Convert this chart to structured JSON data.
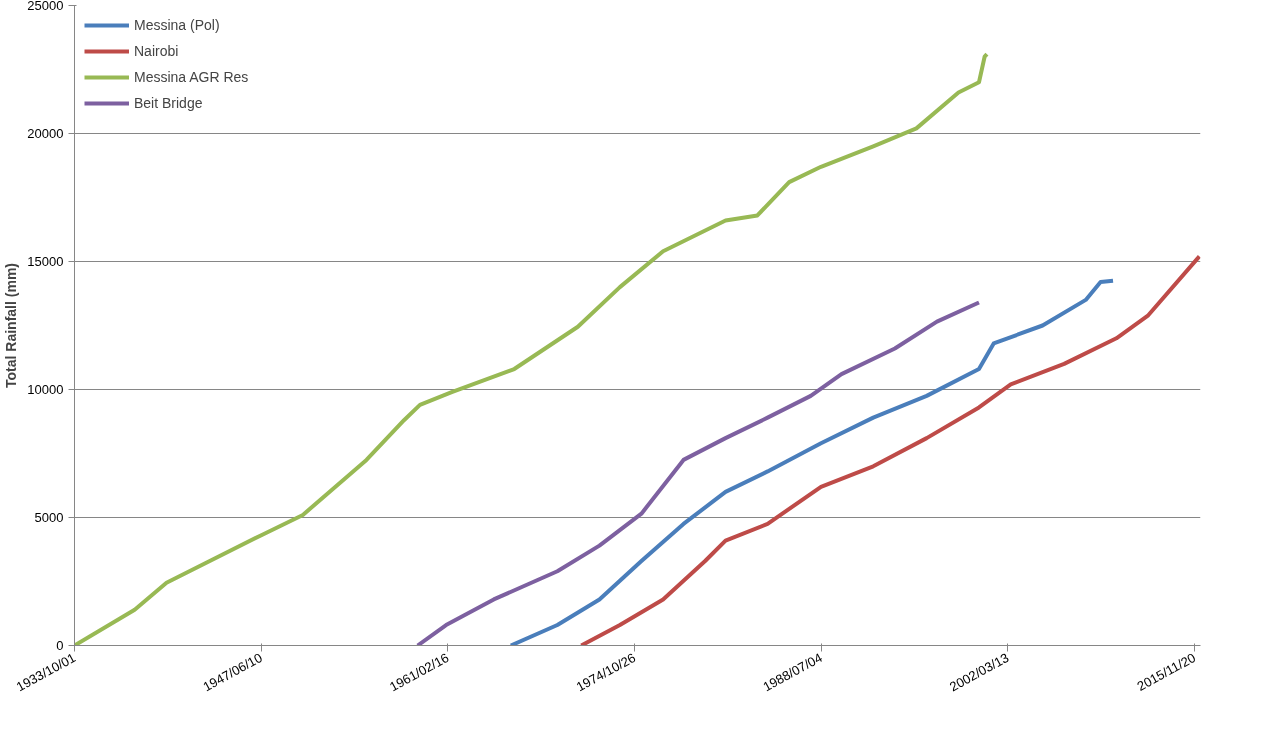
{
  "chart_data": {
    "type": "line",
    "ylabel": "Total Rainfall (mm)",
    "xlim": [
      "1933-10-01",
      "2016-05-01"
    ],
    "ylim": [
      0,
      25000
    ],
    "xticks": [
      {
        "value": "1933-10-01",
        "label": "1933/10/01"
      },
      {
        "value": "1947-06-10",
        "label": "1947/06/10"
      },
      {
        "value": "1961-02-16",
        "label": "1961/02/16"
      },
      {
        "value": "1974-10-26",
        "label": "1974/10/26"
      },
      {
        "value": "1988-07-04",
        "label": "1988/07/04"
      },
      {
        "value": "2002-03-13",
        "label": "2002/03/13"
      },
      {
        "value": "2015-11-20",
        "label": "2015/11/20"
      }
    ],
    "yticks": [
      0,
      5000,
      10000,
      15000,
      20000,
      25000
    ],
    "grid": "y",
    "legend": "top left",
    "line_style": "solid",
    "marker": "none",
    "series": [
      {
        "name": "Messina (Pol)",
        "color": "#4a7ebb",
        "x": [
          "1965-10",
          "1969-03",
          "1972-04",
          "1975-05",
          "1978-06",
          "1981-07",
          "1984-08",
          "1988-07",
          "1992-05",
          "1996-04",
          "2000-02",
          "2001-03",
          "2004-10",
          "2007-12",
          "2009-01",
          "2009-12"
        ],
        "values": [
          0,
          800,
          1800,
          3300,
          4750,
          6000,
          6800,
          7900,
          8900,
          9750,
          10800,
          11800,
          12500,
          13500,
          14200,
          14250
        ]
      },
      {
        "name": "Nairobi",
        "color": "#be4b48",
        "x": [
          "1970-12",
          "1973-10",
          "1976-12",
          "1980-01",
          "1981-07",
          "1984-08",
          "1988-07",
          "1992-05",
          "1996-04",
          "2000-02",
          "2002-06",
          "2006-05",
          "2010-03",
          "2012-07",
          "2016-04"
        ],
        "values": [
          0,
          800,
          1800,
          3300,
          4100,
          4750,
          6200,
          7000,
          8100,
          9300,
          10200,
          11000,
          12000,
          12900,
          15200
        ]
      },
      {
        "name": "Messina AGR Res",
        "color": "#98b954",
        "x": [
          "1933-10",
          "1938-03",
          "1940-07",
          "1947-06",
          "1950-07",
          "1955-03",
          "1957-12",
          "1959-02",
          "1961-06",
          "1966-01",
          "1970-09",
          "1973-10",
          "1976-12",
          "1981-07",
          "1983-11",
          "1986-03",
          "1988-07",
          "1992-05",
          "1995-07",
          "1998-08",
          "2000-02",
          "2000-07",
          "2000-09"
        ],
        "values": [
          0,
          1400,
          2450,
          4300,
          5100,
          7250,
          8800,
          9400,
          9900,
          10800,
          12450,
          14000,
          15400,
          16600,
          16800,
          18100,
          18700,
          19500,
          20200,
          21600,
          22000,
          23000,
          23100
        ]
      },
      {
        "name": "Beit Bridge",
        "color": "#7d60a0",
        "x": [
          "1958-12",
          "1961-01",
          "1964-07",
          "1969-03",
          "1972-04",
          "1975-05",
          "1978-06",
          "1981-07",
          "1984-08",
          "1987-10",
          "1990-01",
          "1993-12",
          "1997-01",
          "2000-02"
        ],
        "values": [
          0,
          800,
          1800,
          2900,
          3900,
          5150,
          7250,
          8100,
          8900,
          9750,
          10600,
          11600,
          12650,
          13400
        ]
      }
    ]
  }
}
